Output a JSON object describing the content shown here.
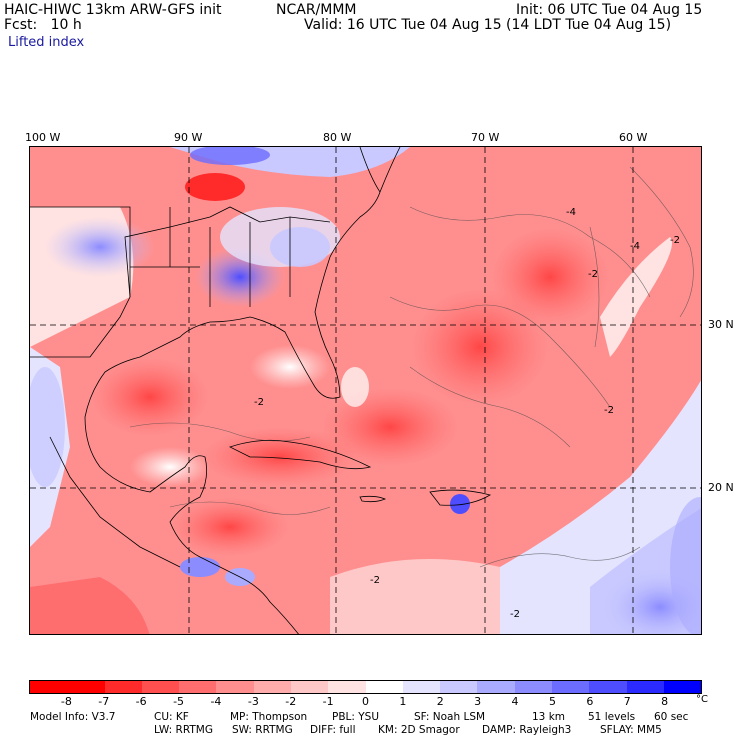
{
  "header": {
    "model": "HAIC-HIWC 13km ARW-GFS init",
    "org": "NCAR/MMM",
    "fcst": "Fcst:   10 h",
    "init": "Init: 06 UTC Tue 04 Aug 15",
    "valid": "Valid: 16 UTC Tue 04 Aug 15 (14 LDT Tue 04 Aug 15)",
    "field": "Lifted index"
  },
  "map": {
    "lon_labels": [
      "100 W",
      "90 W",
      "80 W",
      "70 W",
      "60 W"
    ],
    "lat_labels": [
      "30 N",
      "20 N"
    ],
    "contour_labels": [
      "-4",
      "-2",
      "-4",
      "-2",
      "-2",
      "-2",
      "-2",
      "-2"
    ]
  },
  "colorbar": {
    "colors": [
      "#ff0000",
      "#ff2a2a",
      "#ff4f4f",
      "#ff6e6e",
      "#ff8f8f",
      "#ffacac",
      "#ffc8c8",
      "#ffe2e2",
      "#ffffff",
      "#e4e4ff",
      "#c9c9ff",
      "#aaaaff",
      "#8c8cff",
      "#6c6cff",
      "#4e4eff",
      "#2b2bff",
      "#0000ff"
    ],
    "ticks": [
      "-8",
      "-7",
      "-6",
      "-5",
      "-4",
      "-3",
      "-2",
      "-1",
      "0",
      "1",
      "2",
      "3",
      "4",
      "5",
      "6",
      "7",
      "8"
    ],
    "unit": "°C"
  },
  "model_info": {
    "line1": [
      "Model Info: V3.7",
      "CU: KF",
      "MP: Thompson",
      "PBL: YSU",
      "SF: Noah LSM",
      "13 km",
      "51 levels",
      "60 sec"
    ],
    "line2": [
      "LW: RRTMG",
      "SW: RRTMG",
      "DIFF: full",
      "KM: 2D Smagor",
      "DAMP: Rayleigh3",
      "SFLAY: MM5"
    ]
  }
}
